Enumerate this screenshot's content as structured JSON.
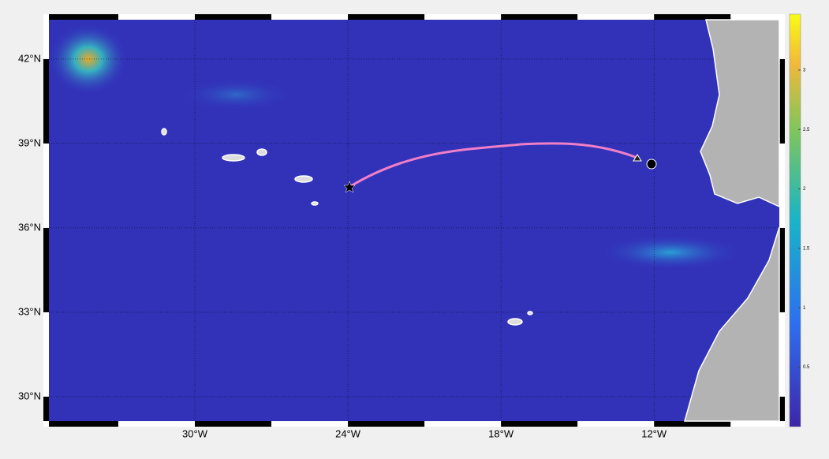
{
  "map": {
    "xlim": [
      -35.72,
      -7.09
    ],
    "ylim": [
      29.13,
      43.4
    ],
    "xticks": [
      {
        "value": -30,
        "label": "30°W"
      },
      {
        "value": -24,
        "label": "24°W"
      },
      {
        "value": -18,
        "label": "18°W"
      },
      {
        "value": -12,
        "label": "12°W"
      }
    ],
    "yticks": [
      {
        "value": 42,
        "label": "42°N"
      },
      {
        "value": 39,
        "label": "39°N"
      },
      {
        "value": 36,
        "label": "36°N"
      },
      {
        "value": 33,
        "label": "33°N"
      },
      {
        "value": 30,
        "label": "30°N"
      }
    ],
    "grid": true,
    "colorbar": {
      "lim": [
        0,
        3.47
      ],
      "ticks": [
        0.5,
        1,
        1.5,
        2,
        2.5,
        3
      ]
    }
  }
}
